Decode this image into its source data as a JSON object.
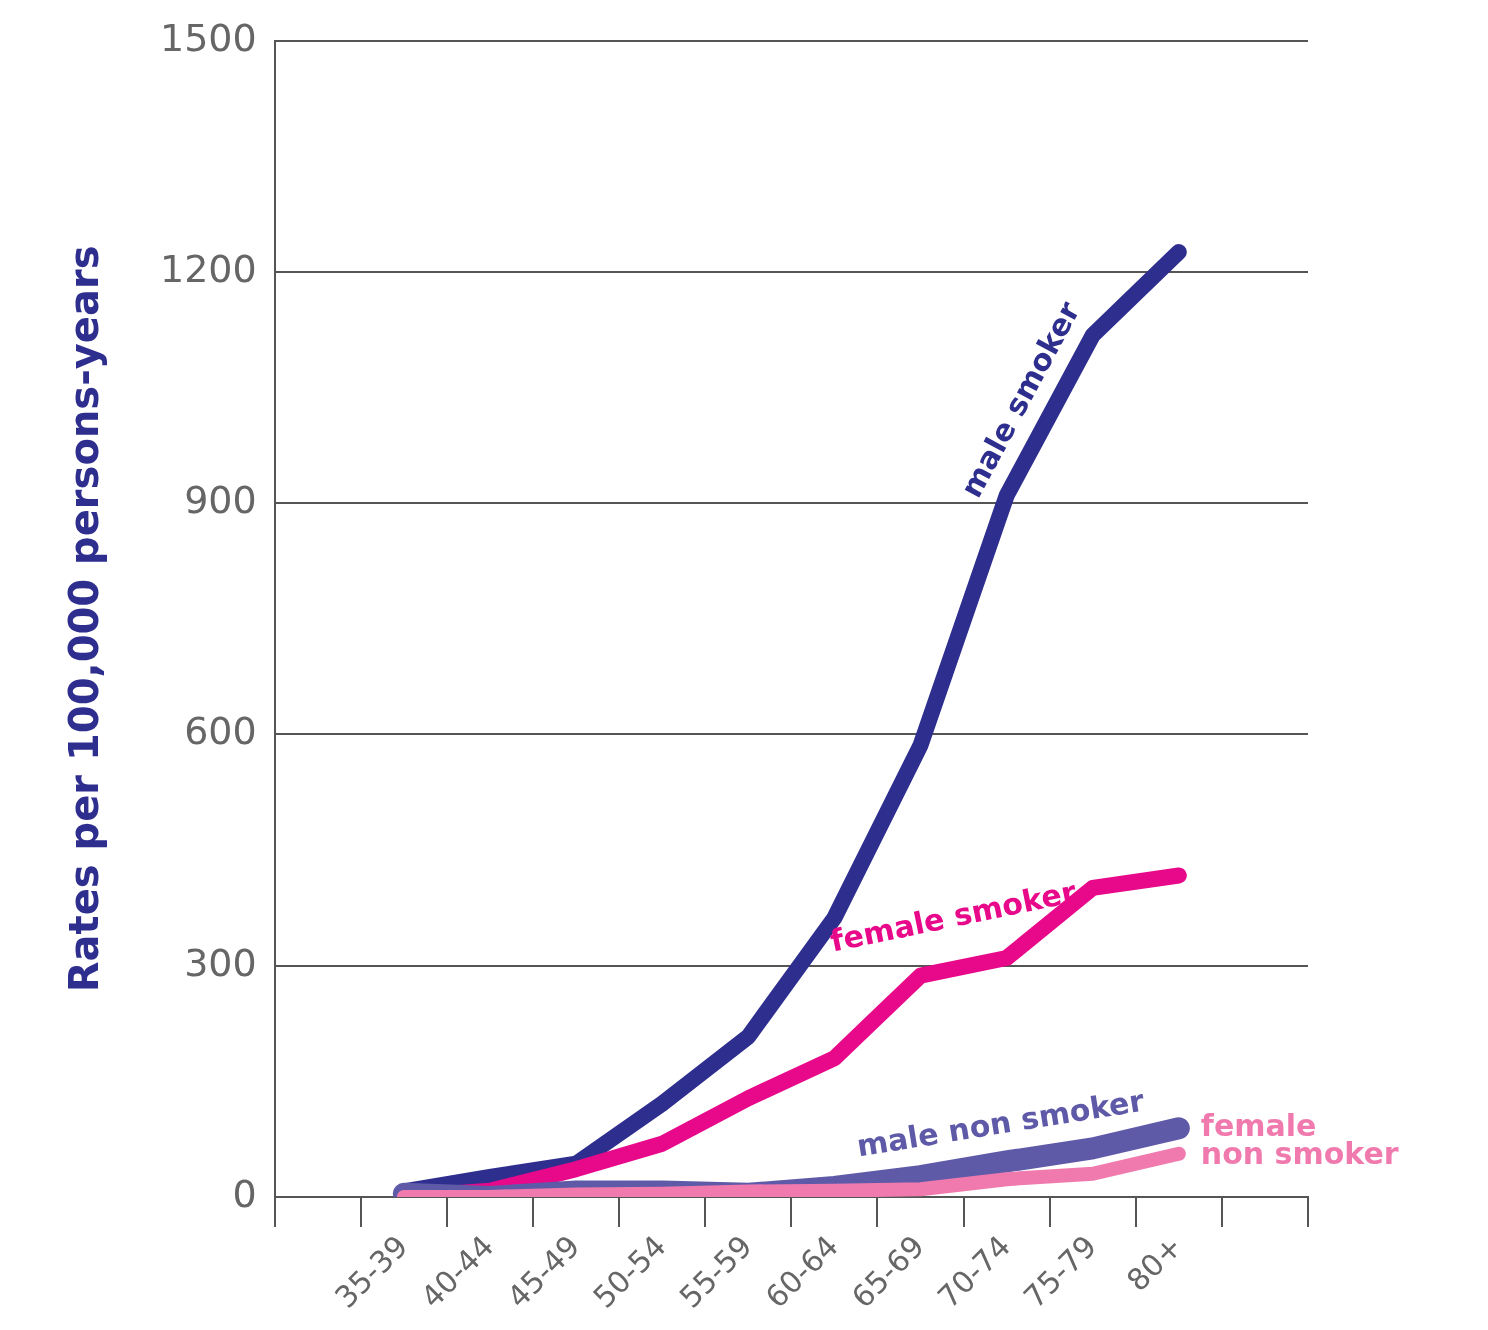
{
  "chart_data": {
    "type": "line",
    "ylabel": "Rates per 100,000 persons-years",
    "categories": [
      null,
      "35-39",
      "40-44",
      "45-49",
      "50-54",
      "55-59",
      "60-64",
      "65-69",
      "70-74",
      "75-79",
      "80+",
      null
    ],
    "series": [
      {
        "name": "male smoker",
        "color": "#2e2e8f",
        "values": [
          null,
          7,
          26,
          43,
          121,
          208,
          362,
          586,
          910,
          1118,
          1226,
          null
        ]
      },
      {
        "name": "female smoker",
        "color": "#e8088a",
        "values": [
          null,
          0,
          8,
          36,
          69,
          128,
          180,
          287,
          310,
          401,
          417,
          null
        ]
      },
      {
        "name": "male non smoker",
        "color": "#5f5aa8",
        "values": [
          null,
          4,
          0,
          7,
          7,
          4,
          13,
          27,
          46,
          63,
          89,
          null
        ]
      },
      {
        "name": "female non smoker",
        "color": "#f07aae",
        "values": [
          null,
          0,
          0,
          3,
          4,
          7,
          8,
          10,
          23,
          30,
          56,
          null
        ]
      }
    ],
    "ylim": [
      0,
      1500
    ],
    "yticks": [
      0,
      300,
      600,
      900,
      1200,
      1500
    ],
    "grid": "y",
    "legend": false,
    "marker": "none",
    "line_style": "solid"
  }
}
